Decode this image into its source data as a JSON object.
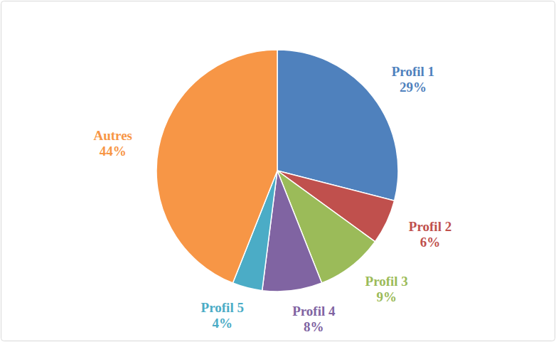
{
  "chart_data": {
    "type": "pie",
    "categories": [
      "Profil 1",
      "Profil 2",
      "Profil 3",
      "Profil 4",
      "Profil 5",
      "Autres"
    ],
    "values": [
      29,
      6,
      9,
      8,
      4,
      44
    ],
    "value_labels": [
      "29%",
      "6%",
      "9%",
      "8%",
      "4%",
      "44%"
    ],
    "colors": [
      "#4f81bd",
      "#c0504d",
      "#9bbb59",
      "#8064a2",
      "#4bacc6",
      "#f79646"
    ],
    "data_labels": true
  }
}
